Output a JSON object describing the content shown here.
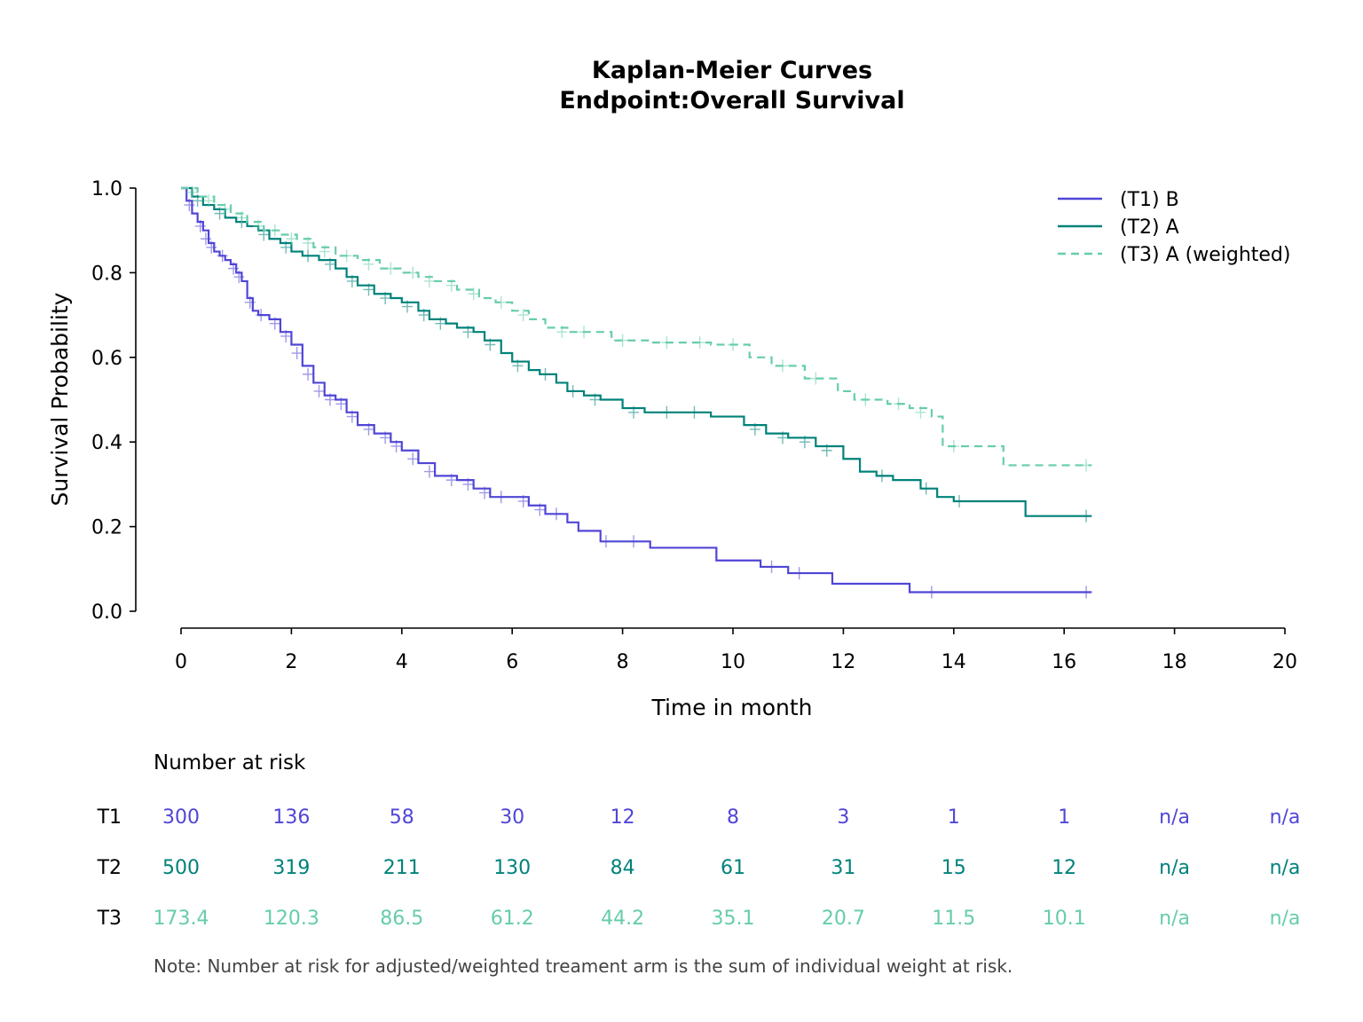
{
  "chart_data": {
    "type": "line",
    "title": "Kaplan-Meier Curves",
    "subtitle": "Endpoint:Overall Survival",
    "xlabel": "Time in month",
    "ylabel": "Survival Probability",
    "xlim": [
      0,
      20
    ],
    "ylim": [
      0,
      1
    ],
    "x_ticks": [
      0,
      2,
      4,
      6,
      8,
      10,
      12,
      14,
      16,
      18,
      20
    ],
    "y_ticks": [
      0.0,
      0.2,
      0.4,
      0.6,
      0.8,
      1.0
    ],
    "x_tick_labels": [
      "0",
      "2",
      "4",
      "6",
      "8",
      "10",
      "12",
      "14",
      "16",
      "18",
      "20"
    ],
    "y_tick_labels": [
      "0.0",
      "0.2",
      "0.4",
      "0.6",
      "0.8",
      "1.0"
    ],
    "grid": false,
    "legend_position": "top-right",
    "series": [
      {
        "name": "(T1) B",
        "color": "#5046d6",
        "line_style": "solid",
        "points": [
          [
            0,
            1.0
          ],
          [
            0.1,
            0.97
          ],
          [
            0.2,
            0.94
          ],
          [
            0.3,
            0.92
          ],
          [
            0.4,
            0.9
          ],
          [
            0.5,
            0.87
          ],
          [
            0.6,
            0.85
          ],
          [
            0.7,
            0.84
          ],
          [
            0.8,
            0.83
          ],
          [
            0.9,
            0.82
          ],
          [
            1.0,
            0.8
          ],
          [
            1.1,
            0.78
          ],
          [
            1.2,
            0.74
          ],
          [
            1.3,
            0.71
          ],
          [
            1.4,
            0.7
          ],
          [
            1.6,
            0.69
          ],
          [
            1.8,
            0.66
          ],
          [
            2.0,
            0.63
          ],
          [
            2.2,
            0.58
          ],
          [
            2.4,
            0.54
          ],
          [
            2.6,
            0.51
          ],
          [
            2.8,
            0.5
          ],
          [
            3.0,
            0.47
          ],
          [
            3.2,
            0.44
          ],
          [
            3.5,
            0.42
          ],
          [
            3.8,
            0.4
          ],
          [
            4.0,
            0.38
          ],
          [
            4.3,
            0.35
          ],
          [
            4.6,
            0.32
          ],
          [
            5.0,
            0.31
          ],
          [
            5.3,
            0.29
          ],
          [
            5.6,
            0.27
          ],
          [
            6.0,
            0.27
          ],
          [
            6.3,
            0.25
          ],
          [
            6.6,
            0.23
          ],
          [
            7.0,
            0.21
          ],
          [
            7.2,
            0.19
          ],
          [
            7.6,
            0.165
          ],
          [
            8.5,
            0.15
          ],
          [
            9.7,
            0.12
          ],
          [
            10.5,
            0.105
          ],
          [
            11.0,
            0.09
          ],
          [
            11.8,
            0.065
          ],
          [
            13.2,
            0.045
          ],
          [
            16.5,
            0.045
          ]
        ],
        "censors": [
          [
            0.15,
            0.96
          ],
          [
            0.35,
            0.91
          ],
          [
            0.45,
            0.88
          ],
          [
            0.55,
            0.86
          ],
          [
            0.75,
            0.84
          ],
          [
            0.95,
            0.81
          ],
          [
            1.05,
            0.79
          ],
          [
            1.25,
            0.73
          ],
          [
            1.45,
            0.7
          ],
          [
            1.7,
            0.68
          ],
          [
            1.9,
            0.65
          ],
          [
            2.1,
            0.61
          ],
          [
            2.3,
            0.56
          ],
          [
            2.5,
            0.52
          ],
          [
            2.7,
            0.5
          ],
          [
            2.9,
            0.49
          ],
          [
            3.1,
            0.46
          ],
          [
            3.4,
            0.43
          ],
          [
            3.7,
            0.41
          ],
          [
            3.9,
            0.39
          ],
          [
            4.2,
            0.36
          ],
          [
            4.5,
            0.33
          ],
          [
            4.9,
            0.31
          ],
          [
            5.2,
            0.3
          ],
          [
            5.5,
            0.28
          ],
          [
            5.8,
            0.27
          ],
          [
            6.2,
            0.26
          ],
          [
            6.5,
            0.24
          ],
          [
            6.8,
            0.23
          ],
          [
            7.7,
            0.165
          ],
          [
            8.2,
            0.165
          ],
          [
            10.7,
            0.105
          ],
          [
            11.2,
            0.09
          ],
          [
            13.6,
            0.045
          ],
          [
            16.4,
            0.045
          ]
        ]
      },
      {
        "name": "(T2) A",
        "color": "#00827a",
        "line_style": "solid",
        "points": [
          [
            0,
            1.0
          ],
          [
            0.2,
            0.98
          ],
          [
            0.4,
            0.96
          ],
          [
            0.6,
            0.95
          ],
          [
            0.8,
            0.93
          ],
          [
            1.0,
            0.92
          ],
          [
            1.2,
            0.91
          ],
          [
            1.4,
            0.9
          ],
          [
            1.6,
            0.88
          ],
          [
            1.8,
            0.87
          ],
          [
            2.0,
            0.85
          ],
          [
            2.2,
            0.84
          ],
          [
            2.5,
            0.83
          ],
          [
            2.8,
            0.81
          ],
          [
            3.0,
            0.79
          ],
          [
            3.2,
            0.77
          ],
          [
            3.5,
            0.75
          ],
          [
            3.8,
            0.74
          ],
          [
            4.0,
            0.73
          ],
          [
            4.3,
            0.71
          ],
          [
            4.5,
            0.69
          ],
          [
            4.8,
            0.68
          ],
          [
            5.0,
            0.67
          ],
          [
            5.3,
            0.66
          ],
          [
            5.5,
            0.64
          ],
          [
            5.8,
            0.61
          ],
          [
            6.0,
            0.59
          ],
          [
            6.3,
            0.57
          ],
          [
            6.5,
            0.56
          ],
          [
            6.8,
            0.54
          ],
          [
            7.0,
            0.52
          ],
          [
            7.3,
            0.51
          ],
          [
            7.6,
            0.5
          ],
          [
            8.0,
            0.48
          ],
          [
            8.4,
            0.47
          ],
          [
            9.0,
            0.47
          ],
          [
            9.6,
            0.46
          ],
          [
            10.2,
            0.44
          ],
          [
            10.6,
            0.42
          ],
          [
            11.0,
            0.41
          ],
          [
            11.5,
            0.39
          ],
          [
            12.0,
            0.36
          ],
          [
            12.3,
            0.33
          ],
          [
            12.6,
            0.32
          ],
          [
            12.9,
            0.31
          ],
          [
            13.4,
            0.29
          ],
          [
            13.7,
            0.27
          ],
          [
            14.0,
            0.26
          ],
          [
            15.3,
            0.24
          ],
          [
            15.3,
            0.225
          ],
          [
            16.5,
            0.225
          ]
        ],
        "censors": [
          [
            0.3,
            0.97
          ],
          [
            0.7,
            0.94
          ],
          [
            1.1,
            0.92
          ],
          [
            1.5,
            0.89
          ],
          [
            1.9,
            0.86
          ],
          [
            2.3,
            0.84
          ],
          [
            2.7,
            0.82
          ],
          [
            3.1,
            0.78
          ],
          [
            3.4,
            0.76
          ],
          [
            3.7,
            0.74
          ],
          [
            4.1,
            0.72
          ],
          [
            4.4,
            0.7
          ],
          [
            4.7,
            0.68
          ],
          [
            5.2,
            0.66
          ],
          [
            5.6,
            0.63
          ],
          [
            6.1,
            0.58
          ],
          [
            6.6,
            0.56
          ],
          [
            7.1,
            0.52
          ],
          [
            7.5,
            0.5
          ],
          [
            8.2,
            0.47
          ],
          [
            8.8,
            0.47
          ],
          [
            9.3,
            0.47
          ],
          [
            10.4,
            0.43
          ],
          [
            10.9,
            0.41
          ],
          [
            11.3,
            0.4
          ],
          [
            11.7,
            0.38
          ],
          [
            12.7,
            0.32
          ],
          [
            13.5,
            0.29
          ],
          [
            14.1,
            0.26
          ],
          [
            16.4,
            0.225
          ]
        ]
      },
      {
        "name": "(T3) A (weighted)",
        "color": "#66cdaa",
        "line_style": "dashed",
        "points": [
          [
            0,
            1.0
          ],
          [
            0.3,
            0.98
          ],
          [
            0.6,
            0.96
          ],
          [
            0.9,
            0.94
          ],
          [
            1.2,
            0.92
          ],
          [
            1.5,
            0.9
          ],
          [
            1.8,
            0.89
          ],
          [
            2.1,
            0.88
          ],
          [
            2.4,
            0.86
          ],
          [
            2.8,
            0.84
          ],
          [
            3.2,
            0.83
          ],
          [
            3.6,
            0.81
          ],
          [
            4.0,
            0.8
          ],
          [
            4.3,
            0.79
          ],
          [
            4.6,
            0.78
          ],
          [
            5.0,
            0.76
          ],
          [
            5.4,
            0.74
          ],
          [
            5.7,
            0.73
          ],
          [
            6.0,
            0.71
          ],
          [
            6.3,
            0.69
          ],
          [
            6.6,
            0.67
          ],
          [
            7.0,
            0.66
          ],
          [
            7.5,
            0.66
          ],
          [
            7.8,
            0.64
          ],
          [
            8.5,
            0.635
          ],
          [
            9.2,
            0.635
          ],
          [
            9.6,
            0.63
          ],
          [
            10.3,
            0.6
          ],
          [
            10.7,
            0.58
          ],
          [
            11.2,
            0.58
          ],
          [
            11.3,
            0.55
          ],
          [
            11.9,
            0.52
          ],
          [
            12.2,
            0.5
          ],
          [
            12.8,
            0.49
          ],
          [
            13.2,
            0.48
          ],
          [
            13.6,
            0.46
          ],
          [
            13.8,
            0.39
          ],
          [
            14.2,
            0.39
          ],
          [
            14.9,
            0.345
          ],
          [
            16.5,
            0.345
          ]
        ],
        "censors": [
          [
            0.2,
            0.99
          ],
          [
            0.5,
            0.97
          ],
          [
            0.8,
            0.95
          ],
          [
            1.1,
            0.93
          ],
          [
            1.4,
            0.91
          ],
          [
            1.7,
            0.9
          ],
          [
            2.0,
            0.88
          ],
          [
            2.3,
            0.87
          ],
          [
            2.6,
            0.85
          ],
          [
            3.0,
            0.84
          ],
          [
            3.4,
            0.82
          ],
          [
            3.8,
            0.81
          ],
          [
            4.2,
            0.8
          ],
          [
            4.5,
            0.78
          ],
          [
            4.9,
            0.77
          ],
          [
            5.3,
            0.75
          ],
          [
            5.8,
            0.73
          ],
          [
            6.2,
            0.7
          ],
          [
            6.9,
            0.66
          ],
          [
            7.3,
            0.66
          ],
          [
            8.0,
            0.64
          ],
          [
            8.8,
            0.635
          ],
          [
            9.4,
            0.635
          ],
          [
            10.0,
            0.63
          ],
          [
            10.9,
            0.58
          ],
          [
            11.5,
            0.55
          ],
          [
            12.4,
            0.5
          ],
          [
            13.0,
            0.49
          ],
          [
            13.4,
            0.47
          ],
          [
            14.0,
            0.39
          ],
          [
            16.4,
            0.345
          ]
        ]
      }
    ]
  },
  "risk_table": {
    "title": "Number at risk",
    "rows": [
      {
        "label": "T1",
        "color": "#5046d6",
        "values": [
          "300",
          "136",
          "58",
          "30",
          "12",
          "8",
          "3",
          "1",
          "1",
          "n/a",
          "n/a"
        ]
      },
      {
        "label": "T2",
        "color": "#00827a",
        "values": [
          "500",
          "319",
          "211",
          "130",
          "84",
          "61",
          "31",
          "15",
          "12",
          "n/a",
          "n/a"
        ]
      },
      {
        "label": "T3",
        "color": "#66cdaa",
        "values": [
          "173.4",
          "120.3",
          "86.5",
          "61.2",
          "44.2",
          "35.1",
          "20.7",
          "11.5",
          "10.1",
          "n/a",
          "n/a"
        ]
      }
    ],
    "note": "Note: Number at risk for adjusted/weighted treament arm is the sum of individual weight at risk."
  }
}
